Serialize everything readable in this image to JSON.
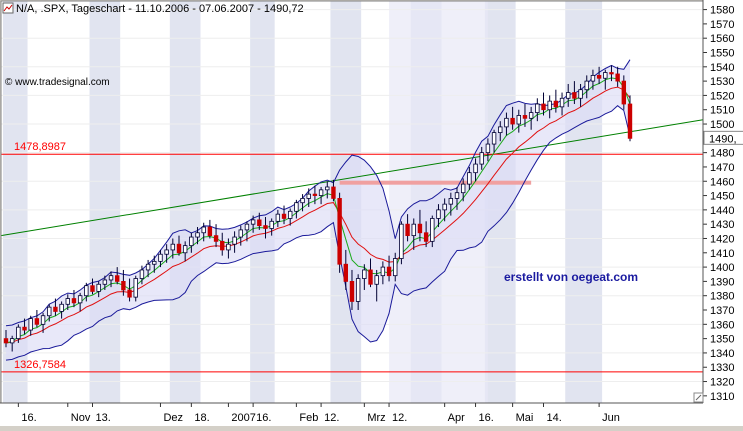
{
  "header": {
    "title": "N/A, .SPX, Tageschart - 11.10.2006 - 07.06.2007 - 1490,72",
    "copyright": "© www.tradesignal.com",
    "watermark": "erstellt von oegeat.com"
  },
  "colors": {
    "plot_bg": "#ffffff",
    "band_shade": "#e1e4f0",
    "bollinger_fill": "#dcdcf6",
    "bollinger_line": "#1a1a9a",
    "ma_fast": "#1aaa1a",
    "ma_slow": "#e01010",
    "trendline": "#008000",
    "ref_line": "#ff0000",
    "resistance_zone": "#f0a0a0",
    "candle_up": "#ffffff",
    "candle_down": "#cc0000",
    "wick": "#000033"
  },
  "chart_data": {
    "type": "candlestick",
    "title": "N/A, .SPX, Tageschart - 11.10.2006 - 07.06.2007 - 1490,72",
    "y_axis": {
      "range": [
        1305,
        1586
      ],
      "ticks": [
        1310,
        1320,
        1330,
        1340,
        1350,
        1360,
        1370,
        1380,
        1390,
        1400,
        1410,
        1420,
        1430,
        1440,
        1450,
        1460,
        1470,
        1480,
        1490,
        1500,
        1510,
        1520,
        1530,
        1540,
        1550,
        1560,
        1570,
        1580
      ],
      "current_value_label": "1490,"
    },
    "x_axis": {
      "labels": [
        {
          "text": "16.",
          "index": 2
        },
        {
          "text": "Nov",
          "index": 10
        },
        {
          "text": "13.",
          "index": 14
        },
        {
          "text": "Dez",
          "index": 25
        },
        {
          "text": "18.",
          "index": 30
        },
        {
          "text": "2007",
          "index": 36
        },
        {
          "text": "16.",
          "index": 40
        },
        {
          "text": "Feb",
          "index": 47
        },
        {
          "text": "12.",
          "index": 51
        },
        {
          "text": "Mrz",
          "index": 58
        },
        {
          "text": "12.",
          "index": 62
        },
        {
          "text": "Apr",
          "index": 71
        },
        {
          "text": "16.",
          "index": 76
        },
        {
          "text": "Mai",
          "index": 82
        },
        {
          "text": "14.",
          "index": 87
        },
        {
          "text": "Jun",
          "index": 96
        }
      ],
      "shaded_bands": [
        [
          0,
          3
        ],
        [
          14,
          18
        ],
        [
          27,
          31
        ],
        [
          40,
          43
        ],
        [
          53,
          57
        ],
        [
          66,
          70
        ],
        [
          78,
          82
        ],
        [
          91,
          96
        ]
      ],
      "highlighted_band": [
        62,
        78
      ]
    },
    "reference_lines": [
      {
        "label": "1478,8987",
        "value": 1478.8987
      },
      {
        "label": "1326,7584",
        "value": 1326.7584
      }
    ],
    "resistance_zone": {
      "from_index": 54,
      "to_index": 85,
      "value": 1459
    },
    "trendline": {
      "from": {
        "index": 0,
        "value": 1422
      },
      "to": {
        "index": 105,
        "value": 1503
      }
    },
    "series": [
      {
        "kind": "ohlc",
        "values": [
          [
            1350,
            1356,
            1344,
            1347
          ],
          [
            1347,
            1352,
            1341,
            1350
          ],
          [
            1350,
            1360,
            1347,
            1358
          ],
          [
            1358,
            1364,
            1353,
            1356
          ],
          [
            1356,
            1366,
            1352,
            1364
          ],
          [
            1364,
            1370,
            1358,
            1360
          ],
          [
            1360,
            1368,
            1354,
            1366
          ],
          [
            1366,
            1374,
            1362,
            1372
          ],
          [
            1372,
            1378,
            1366,
            1369
          ],
          [
            1369,
            1376,
            1364,
            1374
          ],
          [
            1374,
            1381,
            1370,
            1378
          ],
          [
            1378,
            1384,
            1372,
            1375
          ],
          [
            1375,
            1382,
            1369,
            1380
          ],
          [
            1380,
            1389,
            1376,
            1387
          ],
          [
            1387,
            1392,
            1381,
            1383
          ],
          [
            1383,
            1390,
            1379,
            1388
          ],
          [
            1388,
            1394,
            1384,
            1391
          ],
          [
            1391,
            1397,
            1386,
            1394
          ],
          [
            1394,
            1400,
            1388,
            1390
          ],
          [
            1390,
            1398,
            1380,
            1384
          ],
          [
            1384,
            1392,
            1376,
            1379
          ],
          [
            1379,
            1394,
            1376,
            1392
          ],
          [
            1392,
            1401,
            1388,
            1398
          ],
          [
            1398,
            1405,
            1393,
            1402
          ],
          [
            1402,
            1408,
            1396,
            1404
          ],
          [
            1404,
            1412,
            1400,
            1409
          ],
          [
            1409,
            1416,
            1403,
            1412
          ],
          [
            1412,
            1420,
            1406,
            1416
          ],
          [
            1416,
            1422,
            1408,
            1410
          ],
          [
            1410,
            1418,
            1404,
            1415
          ],
          [
            1415,
            1424,
            1410,
            1421
          ],
          [
            1421,
            1428,
            1416,
            1424
          ],
          [
            1424,
            1431,
            1418,
            1428
          ],
          [
            1428,
            1433,
            1420,
            1422
          ],
          [
            1422,
            1430,
            1414,
            1418
          ],
          [
            1418,
            1424,
            1408,
            1412
          ],
          [
            1412,
            1420,
            1406,
            1416
          ],
          [
            1416,
            1425,
            1410,
            1421
          ],
          [
            1421,
            1429,
            1415,
            1426
          ],
          [
            1426,
            1432,
            1418,
            1430
          ],
          [
            1430,
            1436,
            1424,
            1433
          ],
          [
            1433,
            1438,
            1426,
            1429
          ],
          [
            1429,
            1435,
            1420,
            1427
          ],
          [
            1427,
            1434,
            1422,
            1432
          ],
          [
            1432,
            1440,
            1428,
            1437
          ],
          [
            1437,
            1443,
            1430,
            1434
          ],
          [
            1434,
            1441,
            1429,
            1439
          ],
          [
            1439,
            1447,
            1434,
            1445
          ],
          [
            1445,
            1451,
            1439,
            1448
          ],
          [
            1448,
            1455,
            1442,
            1451
          ],
          [
            1451,
            1457,
            1444,
            1450
          ],
          [
            1450,
            1456,
            1444,
            1454
          ],
          [
            1454,
            1460,
            1448,
            1456
          ],
          [
            1456,
            1461,
            1446,
            1448
          ],
          [
            1448,
            1452,
            1396,
            1402
          ],
          [
            1402,
            1412,
            1384,
            1390
          ],
          [
            1390,
            1398,
            1370,
            1376
          ],
          [
            1376,
            1395,
            1370,
            1392
          ],
          [
            1392,
            1402,
            1384,
            1398
          ],
          [
            1398,
            1406,
            1386,
            1388
          ],
          [
            1388,
            1398,
            1376,
            1394
          ],
          [
            1394,
            1404,
            1388,
            1400
          ],
          [
            1400,
            1408,
            1390,
            1394
          ],
          [
            1394,
            1410,
            1390,
            1406
          ],
          [
            1406,
            1432,
            1402,
            1430
          ],
          [
            1430,
            1437,
            1418,
            1422
          ],
          [
            1422,
            1434,
            1412,
            1430
          ],
          [
            1430,
            1440,
            1418,
            1424
          ],
          [
            1424,
            1432,
            1414,
            1418
          ],
          [
            1418,
            1436,
            1414,
            1434
          ],
          [
            1434,
            1444,
            1428,
            1440
          ],
          [
            1440,
            1448,
            1432,
            1444
          ],
          [
            1444,
            1452,
            1436,
            1448
          ],
          [
            1448,
            1456,
            1440,
            1452
          ],
          [
            1452,
            1462,
            1446,
            1458
          ],
          [
            1458,
            1470,
            1454,
            1466
          ],
          [
            1466,
            1476,
            1460,
            1472
          ],
          [
            1472,
            1484,
            1468,
            1480
          ],
          [
            1480,
            1490,
            1474,
            1486
          ],
          [
            1486,
            1496,
            1480,
            1494
          ],
          [
            1494,
            1502,
            1488,
            1498
          ],
          [
            1498,
            1508,
            1492,
            1504
          ],
          [
            1504,
            1512,
            1496,
            1500
          ],
          [
            1500,
            1510,
            1494,
            1506
          ],
          [
            1506,
            1514,
            1498,
            1504
          ],
          [
            1504,
            1512,
            1496,
            1508
          ],
          [
            1508,
            1518,
            1502,
            1514
          ],
          [
            1514,
            1522,
            1506,
            1510
          ],
          [
            1510,
            1520,
            1504,
            1516
          ],
          [
            1516,
            1524,
            1508,
            1512
          ],
          [
            1512,
            1522,
            1506,
            1518
          ],
          [
            1518,
            1528,
            1512,
            1522
          ],
          [
            1522,
            1530,
            1514,
            1518
          ],
          [
            1518,
            1528,
            1512,
            1524
          ],
          [
            1524,
            1534,
            1518,
            1530
          ],
          [
            1530,
            1538,
            1524,
            1534
          ],
          [
            1534,
            1540,
            1528,
            1532
          ],
          [
            1532,
            1538,
            1524,
            1536
          ],
          [
            1536,
            1541,
            1530,
            1535
          ],
          [
            1535,
            1540,
            1526,
            1530
          ],
          [
            1530,
            1534,
            1510,
            1514
          ],
          [
            1514,
            1520,
            1488,
            1490
          ]
        ]
      }
    ]
  }
}
